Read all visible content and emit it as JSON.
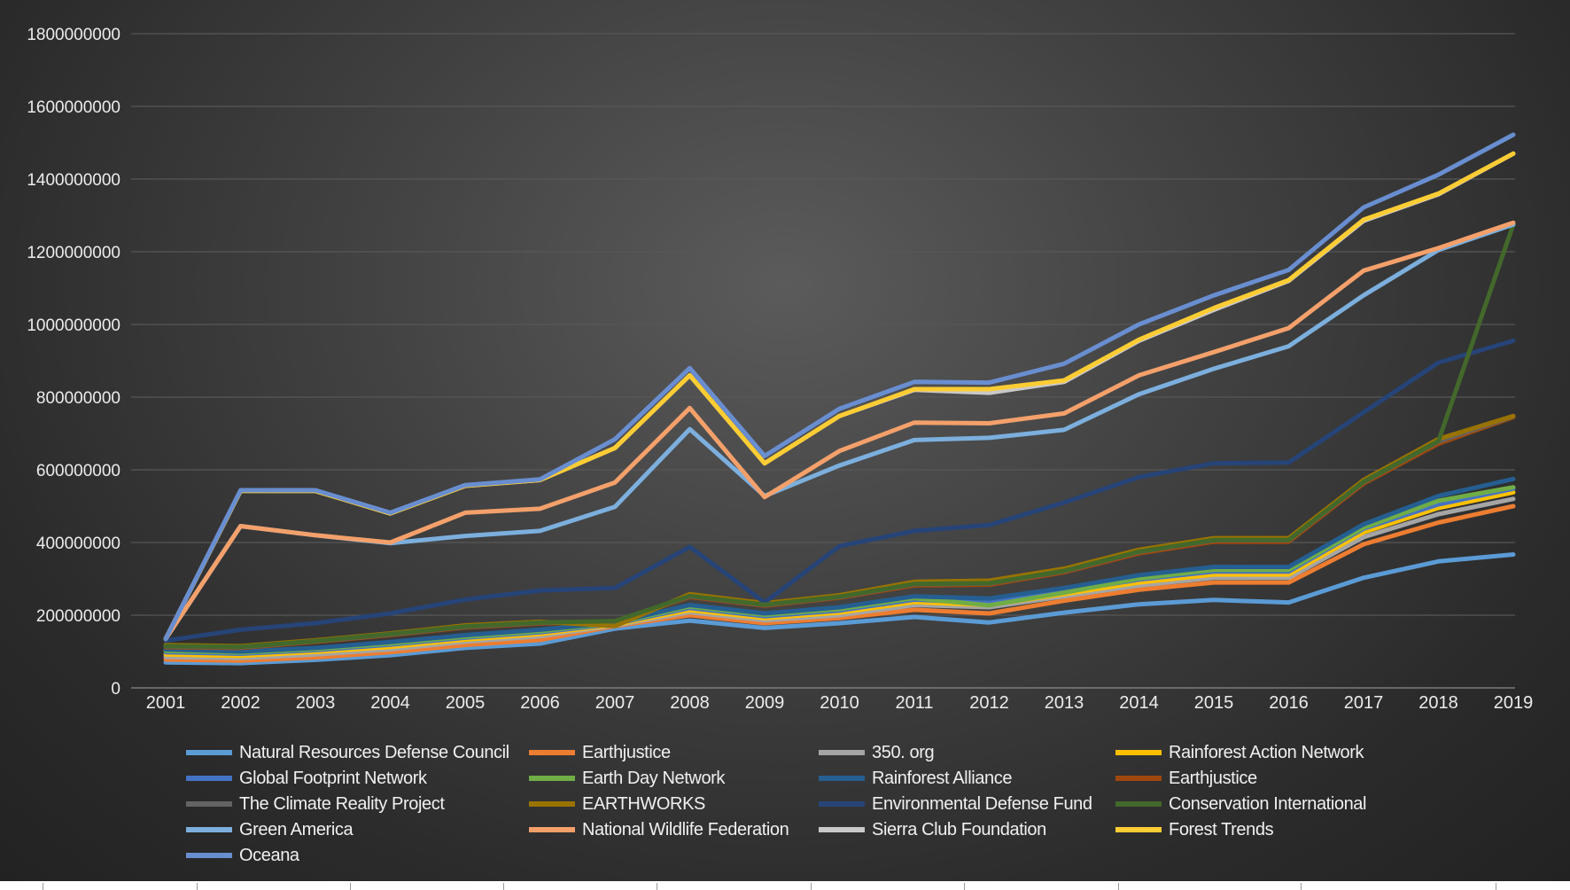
{
  "chart_data": {
    "type": "line",
    "title": "",
    "xlabel": "",
    "ylabel": "",
    "ylim": [
      0,
      1800000000
    ],
    "ytick_step": 200000000,
    "grid": true,
    "legend_position": "bottom",
    "background": "#3a3a3a",
    "x": [
      "2001",
      "2002",
      "2003",
      "2004",
      "2005",
      "2006",
      "2007",
      "2008",
      "2009",
      "2010",
      "2011",
      "2012",
      "2013",
      "2014",
      "2015",
      "2016",
      "2017",
      "2018",
      "2019"
    ],
    "series": [
      {
        "name": "Natural Resources Defense Council",
        "color": "#5b9bd5",
        "values": [
          70000000,
          68000000,
          77000000,
          90000000,
          110000000,
          122000000,
          163000000,
          185000000,
          165000000,
          178000000,
          195000000,
          180000000,
          207000000,
          230000000,
          242000000,
          235000000,
          303000000,
          348000000,
          367000000
        ]
      },
      {
        "name": "Earthjustice",
        "color": "#ed7d31",
        "values": [
          78000000,
          75000000,
          84000000,
          98000000,
          118000000,
          132000000,
          170000000,
          200000000,
          178000000,
          192000000,
          215000000,
          205000000,
          240000000,
          270000000,
          290000000,
          290000000,
          395000000,
          455000000,
          500000000
        ]
      },
      {
        "name": "350. org",
        "color": "#a5a5a5",
        "values": [
          85000000,
          82000000,
          92000000,
          106000000,
          127000000,
          142000000,
          172000000,
          208000000,
          186000000,
          200000000,
          228000000,
          222000000,
          252000000,
          282000000,
          303000000,
          303000000,
          415000000,
          478000000,
          520000000
        ]
      },
      {
        "name": "Rainforest Action Network",
        "color": "#ffc000",
        "values": [
          92000000,
          88000000,
          99000000,
          113000000,
          133000000,
          148000000,
          174000000,
          214000000,
          192000000,
          207000000,
          236000000,
          228000000,
          258000000,
          290000000,
          312000000,
          312000000,
          428000000,
          495000000,
          538000000
        ]
      },
      {
        "name": "Global Footprint Network",
        "color": "#4472c4",
        "values": [
          98000000,
          94000000,
          104000000,
          119000000,
          138000000,
          153000000,
          176000000,
          220000000,
          197000000,
          213000000,
          243000000,
          234000000,
          265000000,
          298000000,
          320000000,
          320000000,
          438000000,
          505000000,
          548000000
        ]
      },
      {
        "name": "Earth Day Network",
        "color": "#70ad47",
        "values": [
          102000000,
          97000000,
          107000000,
          122000000,
          141000000,
          156000000,
          178000000,
          224000000,
          201000000,
          217000000,
          247000000,
          227000000,
          262000000,
          301000000,
          325000000,
          325000000,
          441000000,
          515000000,
          552000000
        ]
      },
      {
        "name": "Rainforest Alliance",
        "color": "#255e91",
        "values": [
          106000000,
          100000000,
          110000000,
          126000000,
          145000000,
          160000000,
          180000000,
          228000000,
          205000000,
          222000000,
          252000000,
          246000000,
          275000000,
          310000000,
          333000000,
          333000000,
          450000000,
          528000000,
          575000000
        ]
      },
      {
        "name": "Earthjustice",
        "color": "#9e480e",
        "values": [
          112000000,
          110000000,
          126000000,
          145000000,
          166000000,
          177000000,
          182000000,
          250000000,
          226000000,
          248000000,
          282000000,
          284000000,
          318000000,
          370000000,
          402000000,
          402000000,
          562000000,
          672000000,
          745000000
        ]
      },
      {
        "name": "The Climate Reality Project",
        "color": "#636363",
        "values": [
          114000000,
          112000000,
          128000000,
          147000000,
          168000000,
          179000000,
          183000000,
          252000000,
          228000000,
          250000000,
          285000000,
          287000000,
          321000000,
          374000000,
          406000000,
          406000000,
          566000000,
          678000000,
          747000000
        ]
      },
      {
        "name": "EARTHWORKS",
        "color": "#997300",
        "values": [
          118000000,
          115000000,
          131000000,
          150000000,
          172000000,
          182000000,
          170000000,
          258000000,
          233000000,
          255000000,
          292000000,
          295000000,
          328000000,
          380000000,
          412000000,
          412000000,
          572000000,
          685000000,
          748000000
        ]
      },
      {
        "name": "Environmental Defense Fund",
        "color": "#264478",
        "values": [
          130000000,
          160000000,
          178000000,
          205000000,
          243000000,
          268000000,
          275000000,
          388000000,
          235000000,
          390000000,
          432000000,
          448000000,
          510000000,
          580000000,
          618000000,
          620000000,
          758000000,
          895000000,
          955000000
        ]
      },
      {
        "name": "Conservation International",
        "color": "#43682b",
        "values": [
          115000000,
          113000000,
          129000000,
          148000000,
          169000000,
          180000000,
          184000000,
          253000000,
          229000000,
          251000000,
          286000000,
          288000000,
          322000000,
          375000000,
          407000000,
          407000000,
          567000000,
          679000000,
          1275000000
        ]
      },
      {
        "name": "Green America",
        "color": "#7cafdd",
        "values": [
          135000000,
          445000000,
          420000000,
          398000000,
          418000000,
          432000000,
          498000000,
          712000000,
          528000000,
          612000000,
          682000000,
          688000000,
          710000000,
          808000000,
          878000000,
          940000000,
          1080000000,
          1205000000,
          1275000000
        ]
      },
      {
        "name": "National Wildlife Federation",
        "color": "#f4a06b",
        "values": [
          135000000,
          445000000,
          420000000,
          400000000,
          482000000,
          493000000,
          565000000,
          770000000,
          525000000,
          652000000,
          730000000,
          728000000,
          755000000,
          860000000,
          924000000,
          990000000,
          1148000000,
          1210000000,
          1280000000
        ]
      },
      {
        "name": "Sierra Club Foundation",
        "color": "#c9c9c9",
        "values": [
          135000000,
          542000000,
          542000000,
          480000000,
          556000000,
          572000000,
          660000000,
          860000000,
          618000000,
          748000000,
          820000000,
          812000000,
          842000000,
          955000000,
          1040000000,
          1120000000,
          1285000000,
          1358000000,
          1470000000
        ]
      },
      {
        "name": "Forest Trends",
        "color": "#ffcd33",
        "values": [
          135000000,
          542000000,
          542000000,
          480000000,
          556000000,
          572000000,
          660000000,
          860000000,
          618000000,
          748000000,
          822000000,
          822000000,
          846000000,
          958000000,
          1045000000,
          1122000000,
          1288000000,
          1360000000,
          1470000000
        ]
      },
      {
        "name": "Oceana",
        "color": "#698ed0",
        "values": [
          135000000,
          544000000,
          544000000,
          482000000,
          558000000,
          574000000,
          684000000,
          880000000,
          638000000,
          768000000,
          842000000,
          840000000,
          892000000,
          1000000000,
          1080000000,
          1150000000,
          1322000000,
          1412000000,
          1522000000
        ]
      }
    ]
  }
}
